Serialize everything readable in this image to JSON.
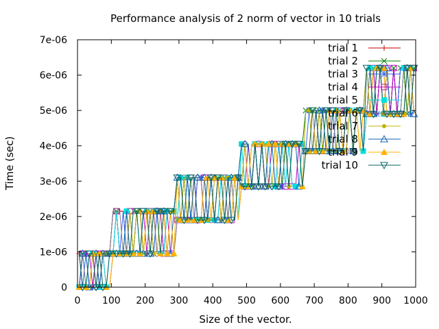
{
  "chart_data": {
    "type": "line",
    "title": "Performance analysis of 2 norm of vector in 10 trials",
    "xlabel": "Size of the vector.",
    "ylabel": "Time (sec)",
    "xlim": [
      0,
      1000
    ],
    "ylim": [
      0,
      7e-06
    ],
    "xticks": [
      0,
      100,
      200,
      300,
      400,
      500,
      600,
      700,
      800,
      900,
      1000
    ],
    "xtick_labels": [
      "0",
      "100",
      "200",
      "300",
      "400",
      "500",
      "600",
      "700",
      "800",
      "900",
      "1000"
    ],
    "yticks": [
      0,
      1e-06,
      2e-06,
      3e-06,
      4e-06,
      5e-06,
      6e-06,
      7e-06
    ],
    "ytick_labels": [
      "0",
      "1e-06",
      "2e-06",
      "3e-06",
      "4e-06",
      "5e-06",
      "6e-06",
      "7e-06"
    ],
    "grid": false,
    "legend_position": "top-right",
    "series": [
      {
        "name": "trial 1",
        "color": "#c00000",
        "marker": "plus"
      },
      {
        "name": "trial 2",
        "color": "#008000",
        "marker": "cross"
      },
      {
        "name": "trial 3",
        "color": "#3060ff",
        "marker": "star"
      },
      {
        "name": "trial 4",
        "color": "#c000c0",
        "marker": "square-open"
      },
      {
        "name": "trial 5",
        "color": "#00e0e0",
        "marker": "square-filled"
      },
      {
        "name": "trial 6",
        "color": "#808080",
        "marker": "circle-open"
      },
      {
        "name": "trial 7",
        "color": "#c0b000",
        "marker": "circle-filled"
      },
      {
        "name": "trial 8",
        "color": "#1060b0",
        "marker": "triangle-open"
      },
      {
        "name": "trial 9",
        "color": "#ffb000",
        "marker": "triangle-filled"
      },
      {
        "name": "trial 10",
        "color": "#006060",
        "marker": "triangle-down-open"
      }
    ],
    "levels": [
      0,
      9.5e-07,
      1.2e-06,
      1.9e-06,
      2.15e-06,
      2.85e-06,
      3.1e-06,
      3.85e-06,
      4.05e-06,
      5e-06,
      5.95e-06,
      6.2e-06
    ],
    "step_pattern": [
      {
        "from": 0,
        "to": 100,
        "low": 0,
        "high": 9.5e-07
      },
      {
        "from": 100,
        "to": 290,
        "low": 9.5e-07,
        "high": 2.15e-06
      },
      {
        "from": 290,
        "to": 480,
        "low": 1.9e-06,
        "high": 3.1e-06
      },
      {
        "from": 480,
        "to": 670,
        "low": 2.85e-06,
        "high": 4.05e-06
      },
      {
        "from": 670,
        "to": 850,
        "low": 3.85e-06,
        "high": 5e-06
      },
      {
        "from": 850,
        "to": 1000,
        "low": 4.9e-06,
        "high": 6.2e-06
      }
    ]
  }
}
